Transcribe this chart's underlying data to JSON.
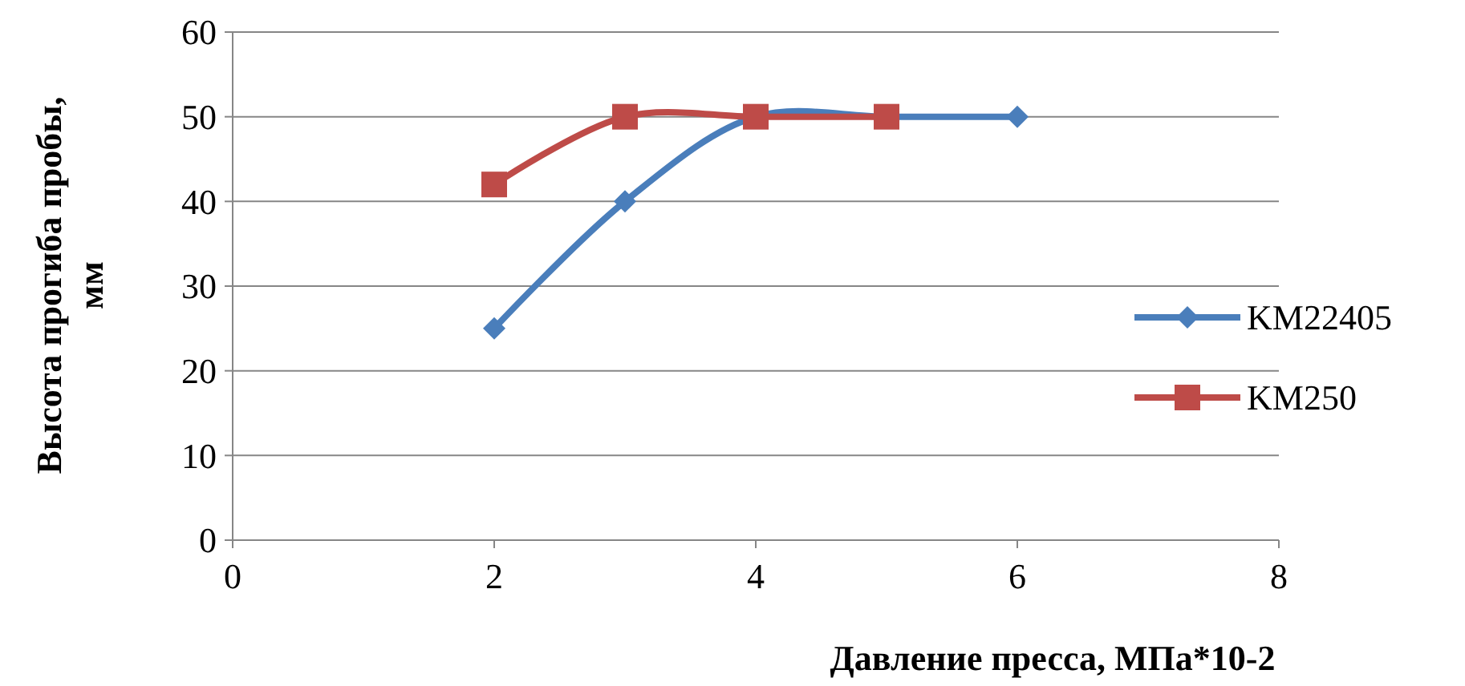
{
  "chart_data": {
    "type": "line",
    "xlabel": "Давление пресса, МПа*10-2",
    "ylabel": "Высота прогиба пробы, мм",
    "xlim": [
      0,
      8
    ],
    "xticks": [
      0,
      2,
      4,
      6,
      8
    ],
    "ylim": [
      0,
      60
    ],
    "yticks": [
      0,
      10,
      20,
      30,
      40,
      50,
      60
    ],
    "grid": "y",
    "legend": "right",
    "line_style": "solid",
    "series": [
      {
        "name": "KM22405",
        "color": "#4a7ebb",
        "marker": "diamond",
        "x": [
          2,
          3,
          4,
          5,
          6
        ],
        "values": [
          25,
          40,
          50,
          50,
          50
        ]
      },
      {
        "name": "KM250",
        "color": "#be4b48",
        "marker": "square",
        "x": [
          2,
          3,
          4,
          5
        ],
        "values": [
          42,
          50,
          50,
          50
        ]
      }
    ]
  }
}
